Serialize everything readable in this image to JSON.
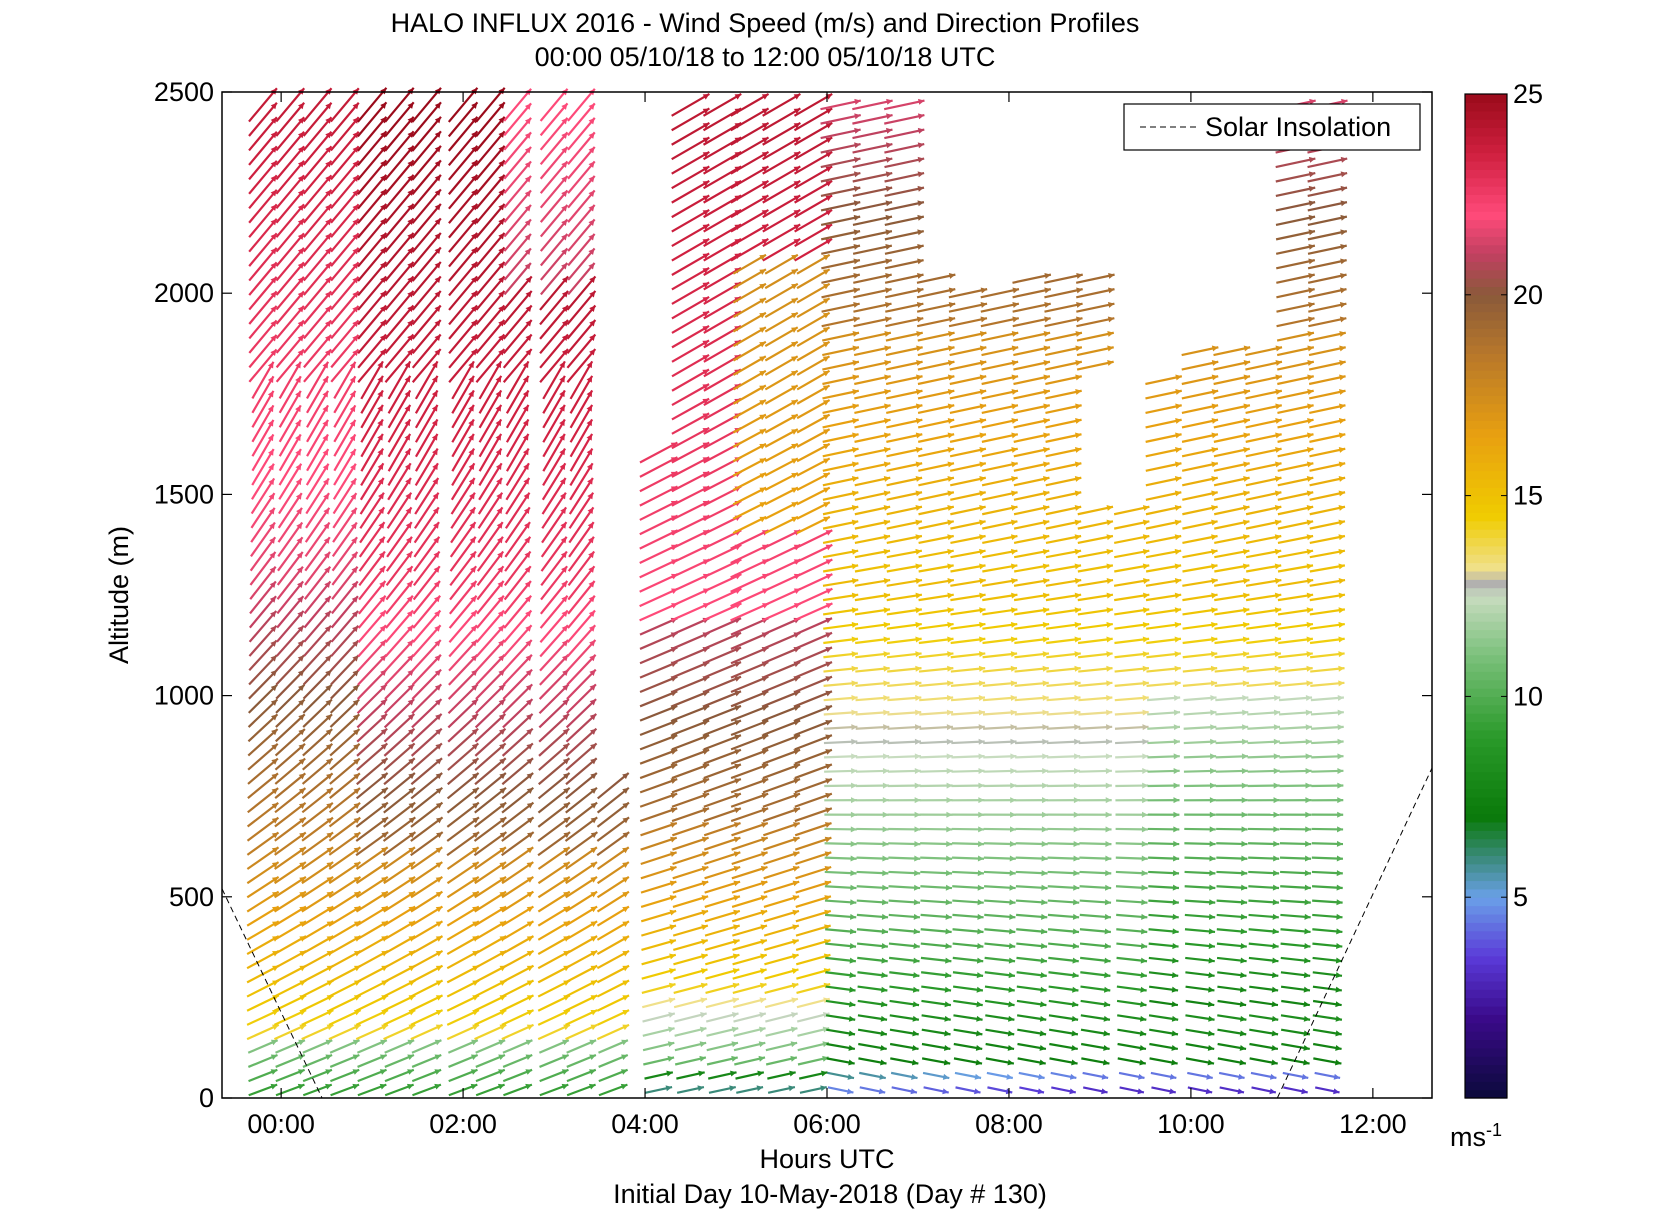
{
  "chart_data": {
    "type": "wind-barb-profile",
    "title": "HALO INFLUX 2016 - Wind Speed (m/s) and Direction Profiles",
    "subtitle": "00:00 05/10/18 to 12:00 05/10/18  UTC",
    "xlabel": "Hours UTC",
    "xlabel2": "Initial Day 10-May-2018 (Day # 130)",
    "ylabel": "Altitude (m)",
    "xlim": [
      -0.65,
      12.65
    ],
    "ylim": [
      0,
      2500
    ],
    "x_ticks": [
      0,
      2,
      4,
      6,
      8,
      10,
      12
    ],
    "x_tick_labels": [
      "00:00",
      "02:00",
      "04:00",
      "06:00",
      "08:00",
      "10:00",
      "12:00"
    ],
    "y_ticks": [
      0,
      500,
      1000,
      1500,
      2000,
      2500
    ],
    "y_tick_labels": [
      "0",
      "500",
      "1000",
      "1500",
      "2000",
      "2500"
    ],
    "colorbar": {
      "range": [
        0,
        25
      ],
      "ticks": [
        5,
        10,
        15,
        20,
        25
      ],
      "tick_labels": [
        "5",
        "10",
        "15",
        "20",
        "25"
      ],
      "unit_label": "ms",
      "unit_exponent": "-1",
      "stops": [
        {
          "v": 0,
          "c": "#0a0a3a"
        },
        {
          "v": 2,
          "c": "#3a0a8a"
        },
        {
          "v": 3.5,
          "c": "#5a3ad8"
        },
        {
          "v": 5,
          "c": "#6aa0e8"
        },
        {
          "v": 6,
          "c": "#3a8a7a"
        },
        {
          "v": 7,
          "c": "#0a7a0a"
        },
        {
          "v": 9,
          "c": "#2a9a2a"
        },
        {
          "v": 11,
          "c": "#7ac07a"
        },
        {
          "v": 12.5,
          "c": "#c8dcc0"
        },
        {
          "v": 12.8,
          "c": "#b0b0b0"
        },
        {
          "v": 13.2,
          "c": "#f0e08a"
        },
        {
          "v": 14.5,
          "c": "#f0cc00"
        },
        {
          "v": 16.5,
          "c": "#e8a010"
        },
        {
          "v": 18.5,
          "c": "#b8782a"
        },
        {
          "v": 20,
          "c": "#8a5a3a"
        },
        {
          "v": 21,
          "c": "#c04060"
        },
        {
          "v": 22,
          "c": "#ff4a7a"
        },
        {
          "v": 23.5,
          "c": "#d02040"
        },
        {
          "v": 25,
          "c": "#9a0a1a"
        }
      ]
    },
    "legend": {
      "placement": "top-right",
      "entries": [
        "Solar Insolation"
      ]
    },
    "solar_insolation": {
      "segments": [
        [
          [
            -0.65,
            520
          ],
          [
            0.45,
            0
          ]
        ],
        [
          [
            10.95,
            0
          ],
          [
            12.65,
            820
          ]
        ]
      ]
    },
    "profiles": {
      "times": [
        -0.2,
        0.1,
        0.4,
        0.7,
        1.0,
        1.3,
        1.6,
        2.0,
        2.3,
        2.6,
        3.0,
        3.3,
        3.65,
        4.15,
        4.5,
        4.85,
        5.15,
        5.5,
        5.85,
        6.15,
        6.5,
        6.85,
        7.2,
        7.55,
        7.9,
        8.25,
        8.6,
        8.95,
        9.35,
        9.7,
        10.1,
        10.45,
        10.8,
        11.15,
        11.5
      ],
      "dz": 36,
      "top_altitudes": [
        2480,
        2480,
        2480,
        2480,
        2480,
        2480,
        2480,
        2480,
        2480,
        2480,
        2480,
        2480,
        2480,
        1620,
        2480,
        2480,
        2480,
        2480,
        2480,
        2480,
        2480,
        2480,
        2070,
        2000,
        2000,
        2050,
        2070,
        2070,
        1800,
        1800,
        1880,
        1880,
        1880,
        2480,
        2480
      ],
      "gaps": {
        "col_3.65": [
          [
            800,
            2480
          ]
        ],
        "col_4.15": [
          [
            1620,
            2200
          ]
        ],
        "col_8.95": [
          [
            1470,
            1800
          ]
        ],
        "col_9.35": [
          [
            1470,
            1800
          ]
        ]
      },
      "speed_model": "speed = f(altitude, time) — weak near surface, strong aloft (m/s)",
      "direction_note": "westerly to west-southwesterly flow, veering aloft"
    }
  }
}
